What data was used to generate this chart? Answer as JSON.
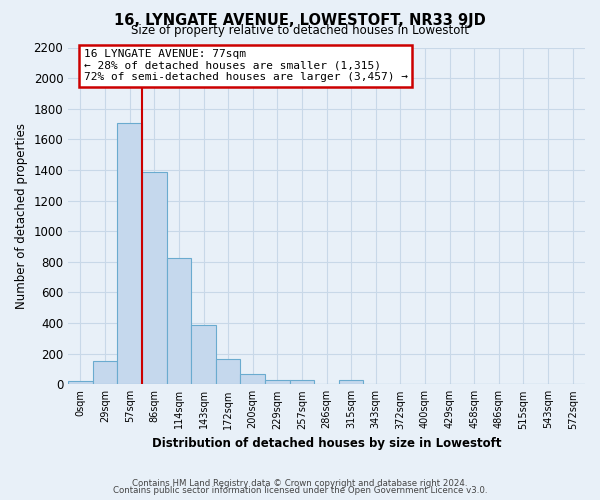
{
  "title": "16, LYNGATE AVENUE, LOWESTOFT, NR33 9JD",
  "subtitle": "Size of property relative to detached houses in Lowestoft",
  "xlabel": "Distribution of detached houses by size in Lowestoft",
  "ylabel": "Number of detached properties",
  "bar_labels": [
    "0sqm",
    "29sqm",
    "57sqm",
    "86sqm",
    "114sqm",
    "143sqm",
    "172sqm",
    "200sqm",
    "229sqm",
    "257sqm",
    "286sqm",
    "315sqm",
    "343sqm",
    "372sqm",
    "400sqm",
    "429sqm",
    "458sqm",
    "486sqm",
    "515sqm",
    "543sqm",
    "572sqm"
  ],
  "bar_values": [
    20,
    155,
    1710,
    1390,
    825,
    390,
    165,
    65,
    30,
    25,
    0,
    30,
    0,
    0,
    0,
    0,
    0,
    0,
    0,
    0,
    0
  ],
  "bar_color": "#c5d8ed",
  "bar_edge_color": "#6aabcf",
  "annotation_text": "16 LYNGATE AVENUE: 77sqm\n← 28% of detached houses are smaller (1,315)\n72% of semi-detached houses are larger (3,457) →",
  "annotation_box_color": "#ffffff",
  "annotation_box_edge_color": "#cc0000",
  "vline_color": "#cc0000",
  "ylim": [
    0,
    2200
  ],
  "yticks": [
    0,
    200,
    400,
    600,
    800,
    1000,
    1200,
    1400,
    1600,
    1800,
    2000,
    2200
  ],
  "grid_color": "#c8d8e8",
  "background_color": "#e8f0f8",
  "footer_line1": "Contains HM Land Registry data © Crown copyright and database right 2024.",
  "footer_line2": "Contains public sector information licensed under the Open Government Licence v3.0."
}
